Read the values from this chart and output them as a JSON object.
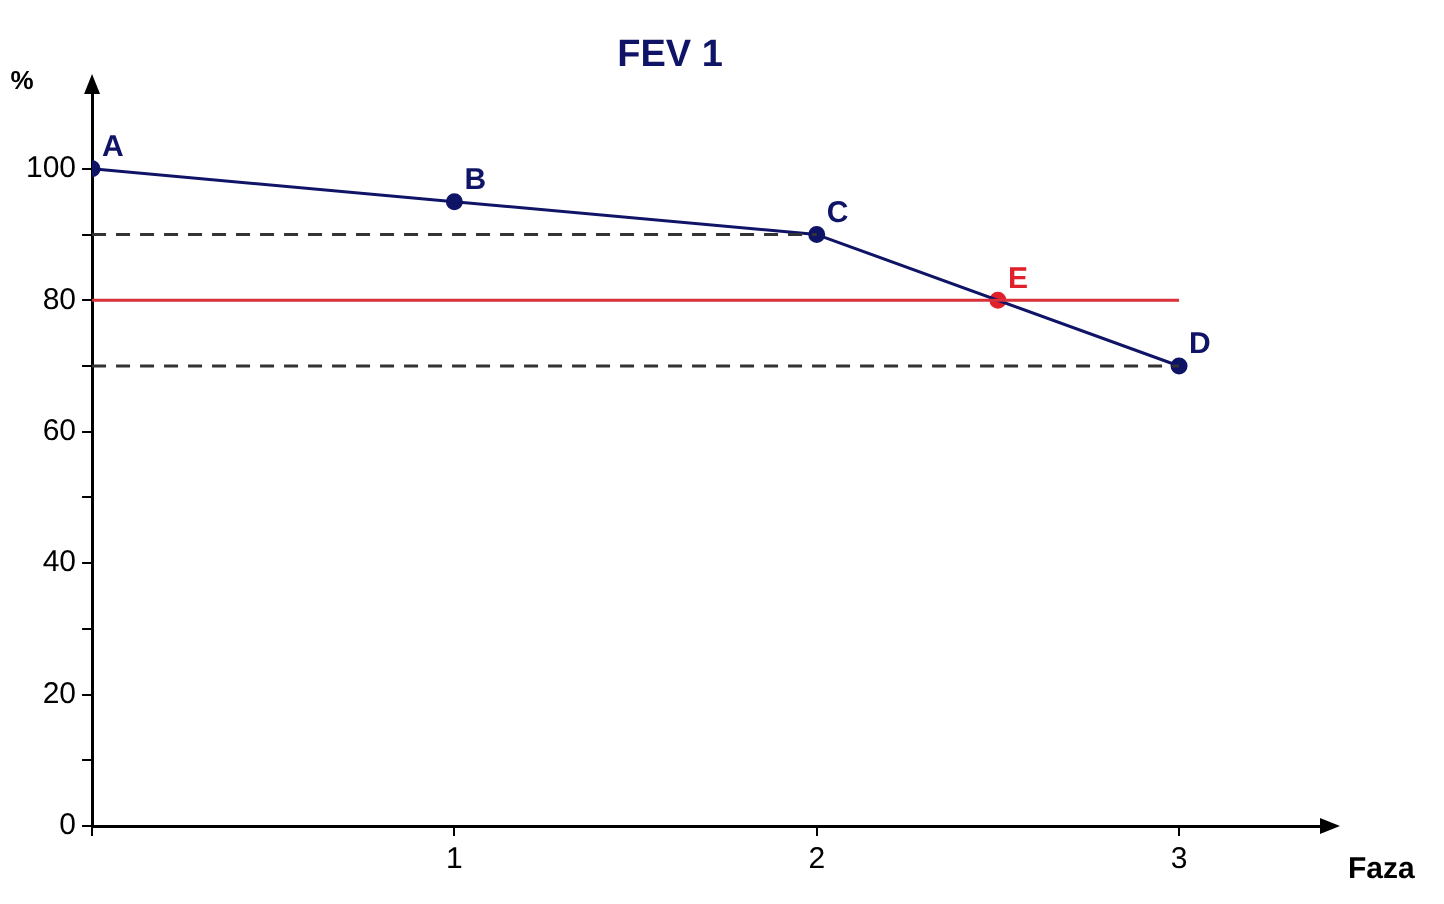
{
  "chart_data": {
    "type": "line",
    "title": "FEV 1",
    "xlabel": "Faza",
    "ylabel": "%",
    "xlim": [
      0,
      3.4
    ],
    "xticks": [
      {
        "value": 0,
        "label": null
      },
      1,
      2,
      3
    ],
    "ylim": [
      0,
      112
    ],
    "yticks": [
      0,
      {
        "value": 10,
        "label": null
      },
      20,
      {
        "value": 30,
        "label": null
      },
      40,
      {
        "value": 50,
        "label": null
      },
      60,
      {
        "value": 70,
        "label": null
      },
      80,
      {
        "value": 90,
        "label": null
      },
      100
    ],
    "grid": false,
    "marker": "circle",
    "line_style": "solid",
    "series": [
      {
        "type": "line",
        "color": "#333333",
        "x": [
          0,
          2
        ],
        "values": [
          90,
          90
        ],
        "marker": "none",
        "line_style": "dashed"
      },
      {
        "type": "line",
        "color": "#333333",
        "x": [
          0,
          3
        ],
        "values": [
          70,
          70
        ],
        "marker": "none",
        "line_style": "dashed"
      },
      {
        "type": "line",
        "color": "#d9303a",
        "x": [
          0,
          3
        ],
        "values": [
          80,
          80
        ],
        "marker": "none",
        "line_style": "solid"
      },
      {
        "type": "line",
        "color": "#0f1466",
        "x": [
          0,
          1,
          2,
          3
        ],
        "values": [
          100,
          95,
          90,
          70
        ]
      },
      {
        "type": "scatter",
        "color": "#e0202a",
        "x": [
          2.5
        ],
        "values": [
          80
        ]
      }
    ],
    "annotations": [
      {
        "text": "A",
        "x": 0,
        "y": 100
      },
      {
        "text": "B",
        "x": 1,
        "y": 95
      },
      {
        "text": "C",
        "x": 2,
        "y": 90
      },
      {
        "text": "E",
        "x": 2.5,
        "y": 80
      },
      {
        "text": "D",
        "x": 3,
        "y": 70
      }
    ]
  }
}
